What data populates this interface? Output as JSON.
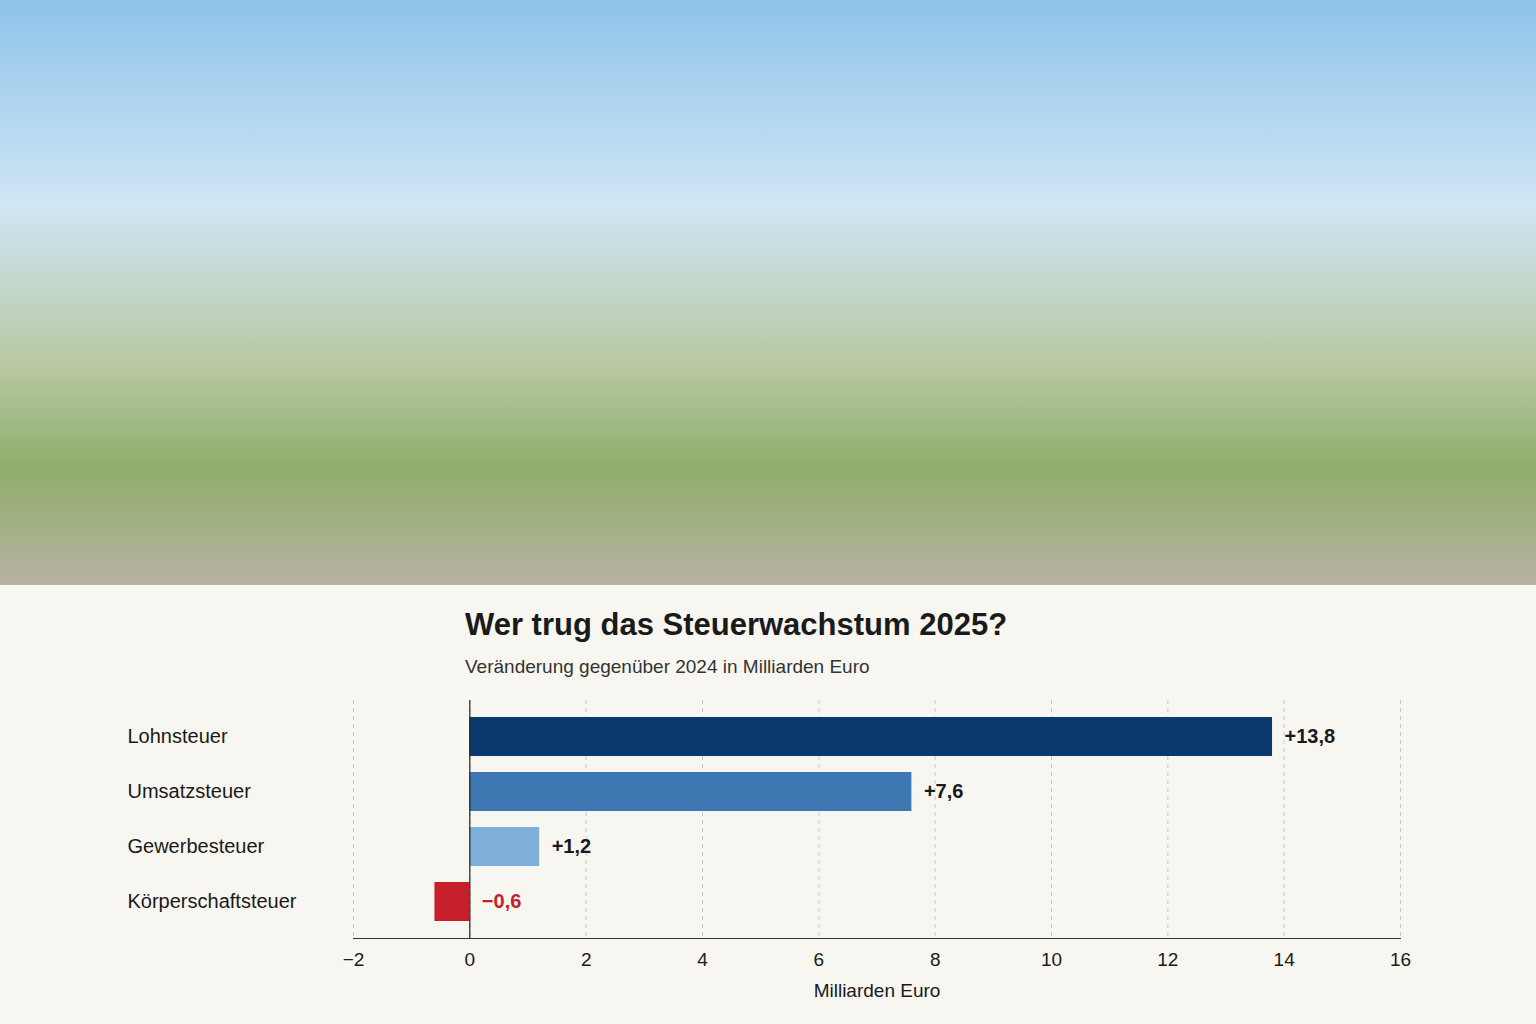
{
  "chart_data": {
    "type": "bar",
    "orientation": "horizontal",
    "title": "Wer trug das Steuerwachstum 2025?",
    "subtitle": "Veränderung gegenüber 2024 in Milliarden Euro",
    "x_label": "Milliarden Euro",
    "categories": [
      "Lohnsteuer",
      "Umsatzsteuer",
      "Gewerbesteuer",
      "Körperschaftsteuer"
    ],
    "values": [
      13.8,
      7.6,
      1.2,
      -0.6
    ],
    "value_labels": [
      "+13,8",
      "+7,6",
      "+1,2",
      "−0,6"
    ],
    "colors": [
      "#0b3a6e",
      "#3d78b3",
      "#7fb0dc",
      "#c8202a"
    ],
    "xlim": [
      -2,
      16
    ],
    "xticks": [
      {
        "value": -2,
        "label": "−2"
      },
      0,
      2,
      4,
      6,
      8,
      10,
      12,
      14,
      16
    ],
    "grid": true,
    "data_labels": true
  }
}
